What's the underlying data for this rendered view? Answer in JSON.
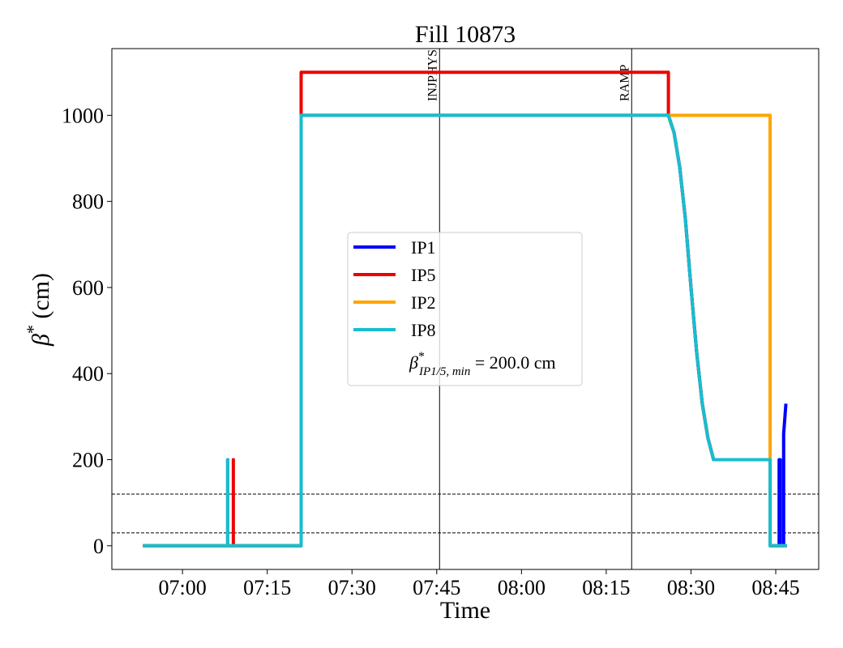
{
  "chart_data": {
    "type": "line",
    "title": "Fill 10873",
    "xlabel": "Time",
    "ylabel": {
      "symbol": "β",
      "sup": "*",
      "text": " (cm)"
    },
    "xlim": [
      "06:47:30",
      "08:52:36"
    ],
    "xticks": [
      "07:00",
      "07:15",
      "07:30",
      "07:45",
      "08:00",
      "08:15",
      "08:30",
      "08:45"
    ],
    "ylim": [
      -55,
      1155
    ],
    "yticks": [
      0,
      200,
      400,
      600,
      800,
      1000
    ],
    "grid": false,
    "legend": "center",
    "legend_note": {
      "symbol": "β",
      "sup": "*",
      "sub": "IP1/5, min",
      "text": " = 200.0 cm"
    },
    "markers": [
      {
        "label": "INJPHYS",
        "x": "07:45:30"
      },
      {
        "label": "RAMP",
        "x": "08:19:30"
      }
    ],
    "hlines": [
      120,
      30
    ],
    "series": [
      {
        "name": "IP1",
        "color": "#0000ff",
        "x": [
          "06:53",
          "07:08",
          "07:08",
          "07:08",
          "07:21",
          "07:21",
          "08:26",
          "08:27",
          "08:28",
          "08:29",
          "08:30",
          "08:31",
          "08:32",
          "08:33",
          "08:34",
          "08:44",
          "08:44",
          "08:45:36",
          "08:45:36",
          "08:45:48",
          "08:45:48",
          "08:46:24",
          "08:46:24",
          "08:46:48"
        ],
        "values": [
          0,
          0,
          200,
          0,
          0,
          1000,
          1000,
          960,
          880,
          760,
          600,
          450,
          330,
          250,
          200,
          200,
          0,
          0,
          200,
          200,
          0,
          0,
          260,
          330
        ]
      },
      {
        "name": "IP5",
        "color": "#ee0000",
        "x": [
          "06:53",
          "07:09",
          "07:09",
          "07:09",
          "07:21",
          "07:21",
          "08:26",
          "08:26",
          "08:27",
          "08:28",
          "08:29",
          "08:30",
          "08:31",
          "08:32",
          "08:33",
          "08:34",
          "08:44",
          "08:44",
          "08:47"
        ],
        "values": [
          0,
          0,
          200,
          0,
          0,
          1100,
          1100,
          1000,
          960,
          880,
          760,
          600,
          450,
          330,
          250,
          200,
          200,
          0,
          0
        ]
      },
      {
        "name": "IP2",
        "color": "#ffa500",
        "x": [
          "06:53",
          "07:08",
          "07:08",
          "07:08",
          "07:21",
          "07:21",
          "08:44",
          "08:44",
          "08:47"
        ],
        "values": [
          0,
          0,
          200,
          0,
          0,
          1000,
          1000,
          0,
          0
        ]
      },
      {
        "name": "IP8",
        "color": "#17becf",
        "x": [
          "06:53",
          "07:08",
          "07:08",
          "07:08",
          "07:21",
          "07:21",
          "08:26",
          "08:27",
          "08:28",
          "08:29",
          "08:30",
          "08:31",
          "08:32",
          "08:33",
          "08:34",
          "08:44",
          "08:44",
          "08:47"
        ],
        "values": [
          0,
          0,
          200,
          0,
          0,
          1000,
          1000,
          960,
          880,
          760,
          600,
          450,
          330,
          250,
          200,
          200,
          0,
          0
        ]
      }
    ]
  }
}
